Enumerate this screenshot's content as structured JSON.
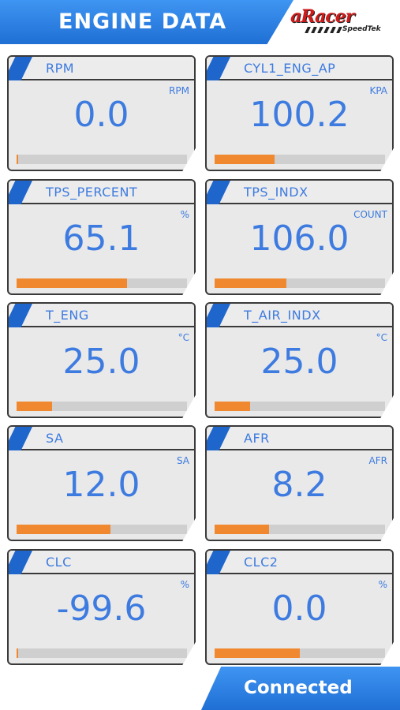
{
  "header": {
    "title": "ENGINE DATA",
    "logo_main": "aRacer",
    "logo_sub": "SpeedTek"
  },
  "gauges": [
    {
      "label": "RPM",
      "unit": "RPM",
      "value": "0.0",
      "level": 0.0
    },
    {
      "label": "CYL1_ENG_AP",
      "unit": "KPA",
      "value": "100.2",
      "level": 0.35
    },
    {
      "label": "TPS_PERCENT",
      "unit": "%",
      "value": "65.1",
      "level": 0.65
    },
    {
      "label": "TPS_INDX",
      "unit": "COUNT",
      "value": "106.0",
      "level": 0.42
    },
    {
      "label": "T_ENG",
      "unit": "°C",
      "value": "25.0",
      "level": 0.21
    },
    {
      "label": "T_AIR_INDX",
      "unit": "°C",
      "value": "25.0",
      "level": 0.21
    },
    {
      "label": "SA",
      "unit": "SA",
      "value": "12.0",
      "level": 0.55
    },
    {
      "label": "AFR",
      "unit": "AFR",
      "value": "8.2",
      "level": 0.32
    },
    {
      "label": "CLC",
      "unit": "%",
      "value": "-99.6",
      "level": 0.0
    },
    {
      "label": "CLC2",
      "unit": "%",
      "value": "0.0",
      "level": 0.5
    }
  ],
  "footer": {
    "status": "Connected"
  },
  "colors": {
    "accent_blue": "#3d7be0",
    "bar_fill": "#f0882f",
    "bar_track": "#cfcfcf"
  }
}
